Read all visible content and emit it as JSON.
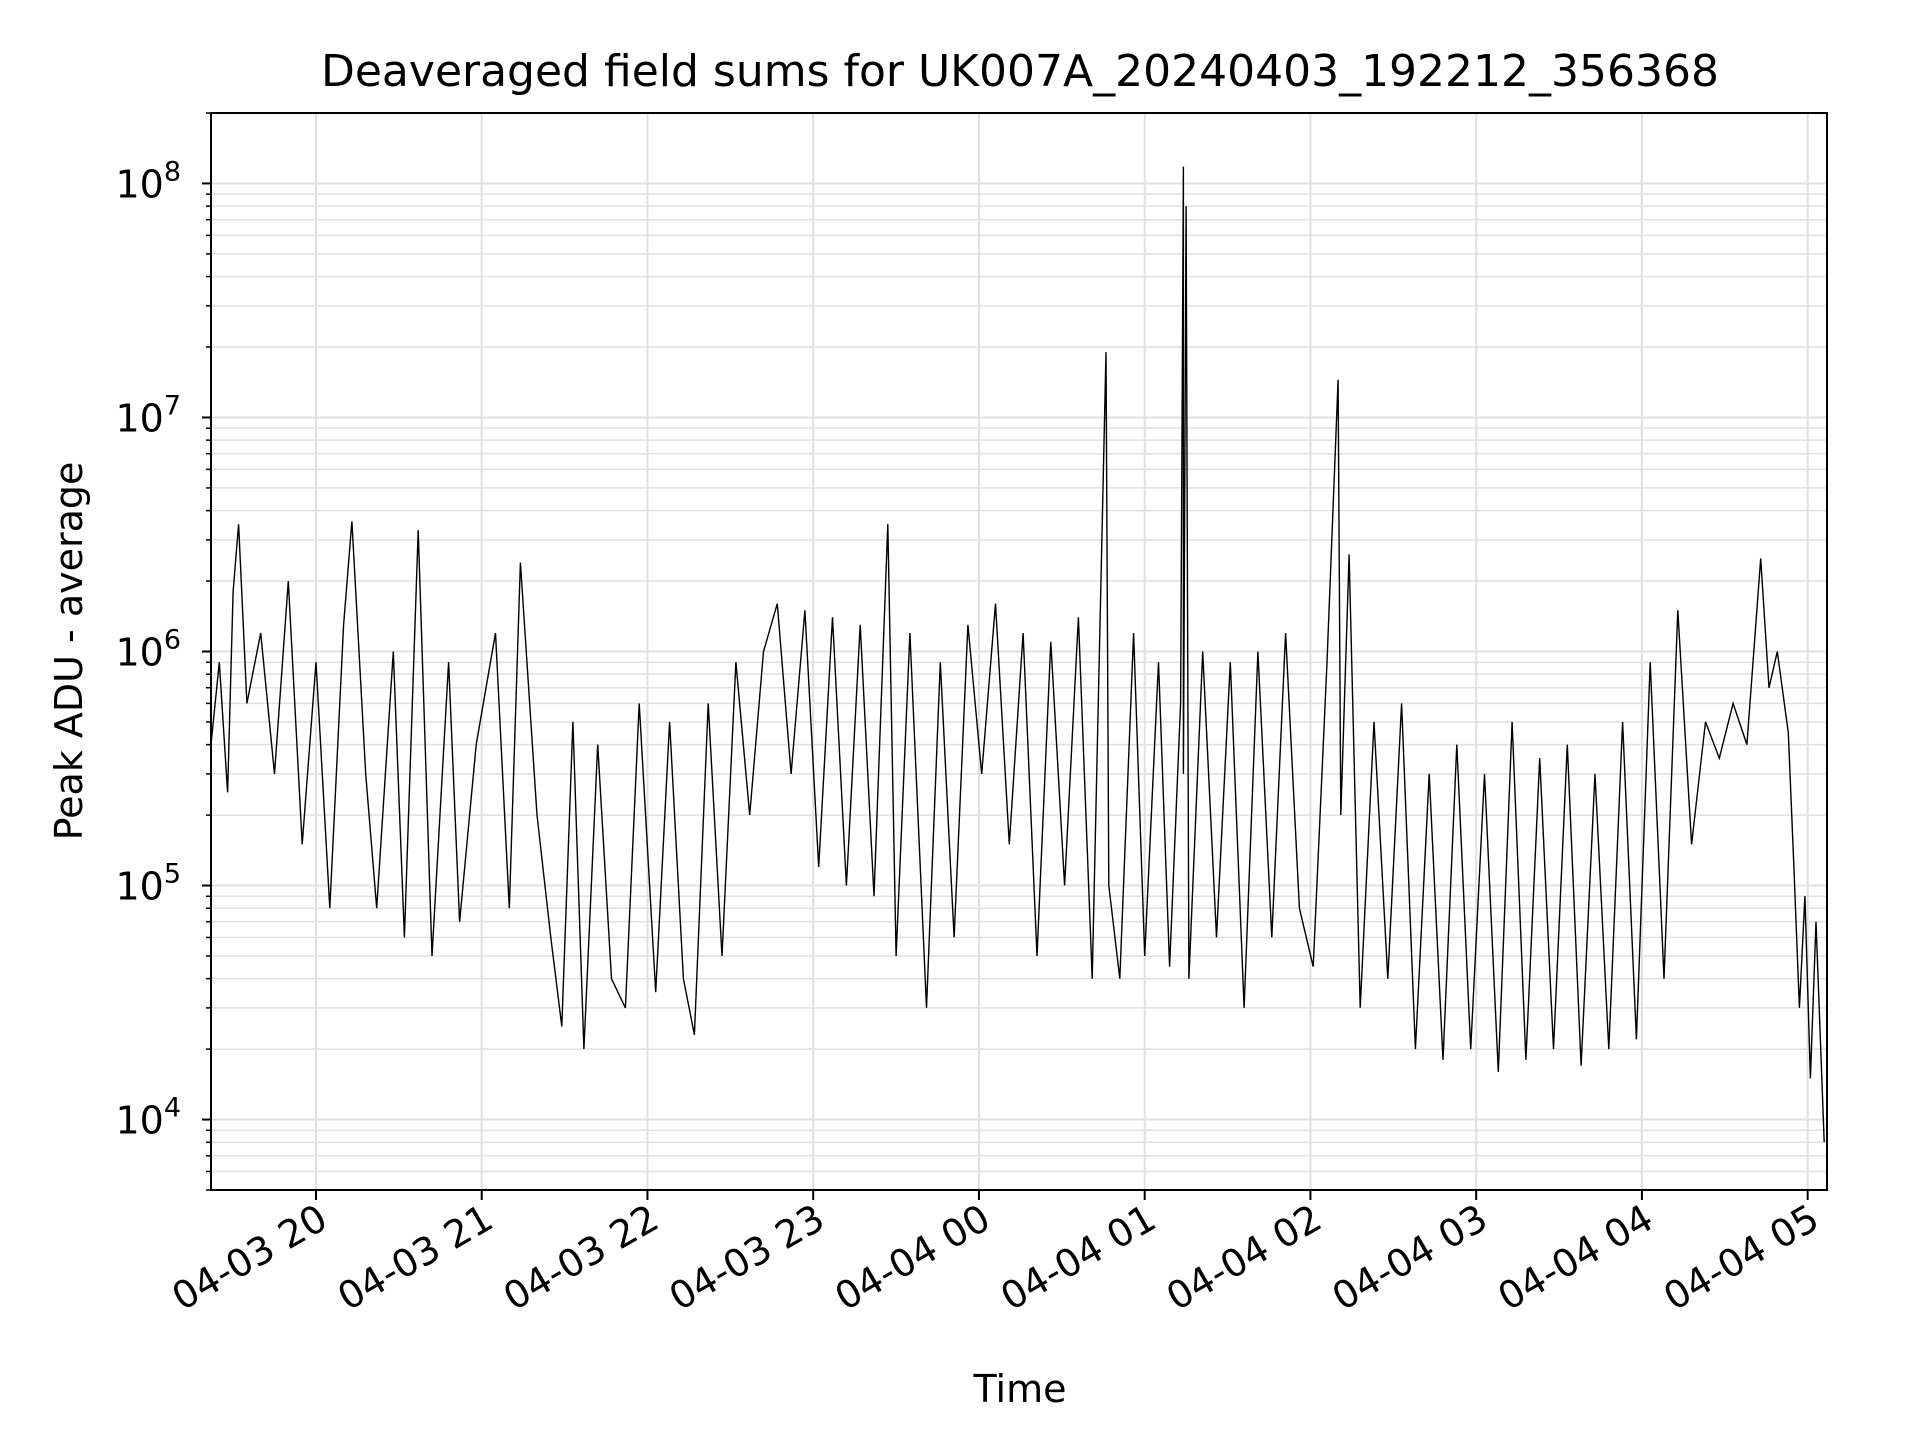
{
  "chart_data": {
    "type": "line",
    "title": "Deaveraged field sums for UK007A_20240403_192212_356368",
    "xlabel": "Time",
    "ylabel": "Peak ADU - average",
    "yscale": "log",
    "ylim": [
      5000,
      200000000
    ],
    "xlim": [
      "2024-04-03 19:22",
      "2024-04-04 05:07"
    ],
    "grid": true,
    "line_color": "#000000",
    "grid_color": "#e0e0e0",
    "x_ticks": [
      {
        "time": "2024-04-03 20:00",
        "label": "04-03 20"
      },
      {
        "time": "2024-04-03 21:00",
        "label": "04-03 21"
      },
      {
        "time": "2024-04-03 22:00",
        "label": "04-03 22"
      },
      {
        "time": "2024-04-03 23:00",
        "label": "04-03 23"
      },
      {
        "time": "2024-04-04 00:00",
        "label": "04-04 00"
      },
      {
        "time": "2024-04-04 01:00",
        "label": "04-04 01"
      },
      {
        "time": "2024-04-04 02:00",
        "label": "04-04 02"
      },
      {
        "time": "2024-04-04 03:00",
        "label": "04-04 03"
      },
      {
        "time": "2024-04-04 04:00",
        "label": "04-04 04"
      },
      {
        "time": "2024-04-04 05:00",
        "label": "04-04 05"
      }
    ],
    "y_ticks": [
      {
        "value": 10000,
        "base": "10",
        "exp": "4"
      },
      {
        "value": 100000,
        "base": "10",
        "exp": "5"
      },
      {
        "value": 1000000,
        "base": "10",
        "exp": "6"
      },
      {
        "value": 10000000,
        "base": "10",
        "exp": "7"
      },
      {
        "value": 100000000,
        "base": "10",
        "exp": "8"
      }
    ],
    "series": [
      {
        "points": [
          [
            "2024-04-03 19:22",
            400000
          ],
          [
            "2024-04-03 19:25",
            900000
          ],
          [
            "2024-04-03 19:28",
            250000
          ],
          [
            "2024-04-03 19:30",
            1800000
          ],
          [
            "2024-04-03 19:32",
            3500000
          ],
          [
            "2024-04-03 19:35",
            600000
          ],
          [
            "2024-04-03 19:40",
            1200000
          ],
          [
            "2024-04-03 19:45",
            300000
          ],
          [
            "2024-04-03 19:50",
            2000000
          ],
          [
            "2024-04-03 19:55",
            150000
          ],
          [
            "2024-04-03 20:00",
            900000
          ],
          [
            "2024-04-03 20:05",
            80000
          ],
          [
            "2024-04-03 20:10",
            1300000
          ],
          [
            "2024-04-03 20:13",
            3600000
          ],
          [
            "2024-04-03 20:18",
            300000
          ],
          [
            "2024-04-03 20:22",
            80000
          ],
          [
            "2024-04-03 20:28",
            1000000
          ],
          [
            "2024-04-03 20:32",
            60000
          ],
          [
            "2024-04-03 20:37",
            3300000
          ],
          [
            "2024-04-03 20:42",
            50000
          ],
          [
            "2024-04-03 20:48",
            900000
          ],
          [
            "2024-04-03 20:52",
            70000
          ],
          [
            "2024-04-03 20:58",
            400000
          ],
          [
            "2024-04-03 21:05",
            1200000
          ],
          [
            "2024-04-03 21:10",
            80000
          ],
          [
            "2024-04-03 21:14",
            2400000
          ],
          [
            "2024-04-03 21:20",
            200000
          ],
          [
            "2024-04-03 21:25",
            60000
          ],
          [
            "2024-04-03 21:29",
            25000
          ],
          [
            "2024-04-03 21:33",
            500000
          ],
          [
            "2024-04-03 21:37",
            20000
          ],
          [
            "2024-04-03 21:42",
            400000
          ],
          [
            "2024-04-03 21:47",
            40000
          ],
          [
            "2024-04-03 21:52",
            30000
          ],
          [
            "2024-04-03 21:57",
            600000
          ],
          [
            "2024-04-03 22:03",
            35000
          ],
          [
            "2024-04-03 22:08",
            500000
          ],
          [
            "2024-04-03 22:13",
            40000
          ],
          [
            "2024-04-03 22:17",
            23000
          ],
          [
            "2024-04-03 22:22",
            600000
          ],
          [
            "2024-04-03 22:27",
            50000
          ],
          [
            "2024-04-03 22:32",
            900000
          ],
          [
            "2024-04-03 22:37",
            200000
          ],
          [
            "2024-04-03 22:42",
            1000000
          ],
          [
            "2024-04-03 22:47",
            1600000
          ],
          [
            "2024-04-03 22:52",
            300000
          ],
          [
            "2024-04-03 22:57",
            1500000
          ],
          [
            "2024-04-03 23:02",
            120000
          ],
          [
            "2024-04-03 23:07",
            1400000
          ],
          [
            "2024-04-03 23:12",
            100000
          ],
          [
            "2024-04-03 23:17",
            1300000
          ],
          [
            "2024-04-03 23:22",
            90000
          ],
          [
            "2024-04-03 23:27",
            3500000
          ],
          [
            "2024-04-03 23:30",
            50000
          ],
          [
            "2024-04-03 23:35",
            1200000
          ],
          [
            "2024-04-03 23:41",
            30000
          ],
          [
            "2024-04-03 23:46",
            900000
          ],
          [
            "2024-04-03 23:51",
            60000
          ],
          [
            "2024-04-03 23:56",
            1300000
          ],
          [
            "2024-04-04 00:01",
            300000
          ],
          [
            "2024-04-04 00:06",
            1600000
          ],
          [
            "2024-04-04 00:11",
            150000
          ],
          [
            "2024-04-04 00:16",
            1200000
          ],
          [
            "2024-04-04 00:21",
            50000
          ],
          [
            "2024-04-04 00:26",
            1100000
          ],
          [
            "2024-04-04 00:31",
            100000
          ],
          [
            "2024-04-04 00:36",
            1400000
          ],
          [
            "2024-04-04 00:41",
            40000
          ],
          [
            "2024-04-04 00:46",
            19000000
          ],
          [
            "2024-04-04 00:47",
            100000
          ],
          [
            "2024-04-04 00:51",
            40000
          ],
          [
            "2024-04-04 00:56",
            1200000
          ],
          [
            "2024-04-04 01:00",
            50000
          ],
          [
            "2024-04-04 01:05",
            900000
          ],
          [
            "2024-04-04 01:09",
            45000
          ],
          [
            "2024-04-04 01:13",
            600000
          ],
          [
            "2024-04-04 01:14",
            118000000
          ],
          [
            "2024-04-04 01:14",
            300000
          ],
          [
            "2024-04-04 01:15",
            80000000
          ],
          [
            "2024-04-04 01:16",
            40000
          ],
          [
            "2024-04-04 01:21",
            1000000
          ],
          [
            "2024-04-04 01:26",
            60000
          ],
          [
            "2024-04-04 01:31",
            900000
          ],
          [
            "2024-04-04 01:36",
            30000
          ],
          [
            "2024-04-04 01:41",
            1000000
          ],
          [
            "2024-04-04 01:46",
            60000
          ],
          [
            "2024-04-04 01:51",
            1200000
          ],
          [
            "2024-04-04 01:56",
            80000
          ],
          [
            "2024-04-04 02:01",
            45000
          ],
          [
            "2024-04-04 02:06",
            900000
          ],
          [
            "2024-04-04 02:10",
            14500000
          ],
          [
            "2024-04-04 02:11",
            200000
          ],
          [
            "2024-04-04 02:14",
            2600000
          ],
          [
            "2024-04-04 02:18",
            30000
          ],
          [
            "2024-04-04 02:23",
            500000
          ],
          [
            "2024-04-04 02:28",
            40000
          ],
          [
            "2024-04-04 02:33",
            600000
          ],
          [
            "2024-04-04 02:38",
            20000
          ],
          [
            "2024-04-04 02:43",
            300000
          ],
          [
            "2024-04-04 02:48",
            18000
          ],
          [
            "2024-04-04 02:53",
            400000
          ],
          [
            "2024-04-04 02:58",
            20000
          ],
          [
            "2024-04-04 03:03",
            300000
          ],
          [
            "2024-04-04 03:08",
            16000
          ],
          [
            "2024-04-04 03:13",
            500000
          ],
          [
            "2024-04-04 03:18",
            18000
          ],
          [
            "2024-04-04 03:23",
            350000
          ],
          [
            "2024-04-04 03:28",
            20000
          ],
          [
            "2024-04-04 03:33",
            400000
          ],
          [
            "2024-04-04 03:38",
            17000
          ],
          [
            "2024-04-04 03:43",
            300000
          ],
          [
            "2024-04-04 03:48",
            20000
          ],
          [
            "2024-04-04 03:53",
            500000
          ],
          [
            "2024-04-04 03:58",
            22000
          ],
          [
            "2024-04-04 04:03",
            900000
          ],
          [
            "2024-04-04 04:08",
            40000
          ],
          [
            "2024-04-04 04:13",
            1500000
          ],
          [
            "2024-04-04 04:18",
            150000
          ],
          [
            "2024-04-04 04:23",
            500000
          ],
          [
            "2024-04-04 04:28",
            350000
          ],
          [
            "2024-04-04 04:33",
            600000
          ],
          [
            "2024-04-04 04:38",
            400000
          ],
          [
            "2024-04-04 04:43",
            2500000
          ],
          [
            "2024-04-04 04:46",
            700000
          ],
          [
            "2024-04-04 04:49",
            1000000
          ],
          [
            "2024-04-04 04:53",
            450000
          ],
          [
            "2024-04-04 04:55",
            120000
          ],
          [
            "2024-04-04 04:57",
            30000
          ],
          [
            "2024-04-04 04:59",
            90000
          ],
          [
            "2024-04-04 05:01",
            15000
          ],
          [
            "2024-04-04 05:03",
            70000
          ],
          [
            "2024-04-04 05:06",
            8000
          ]
        ]
      }
    ]
  }
}
